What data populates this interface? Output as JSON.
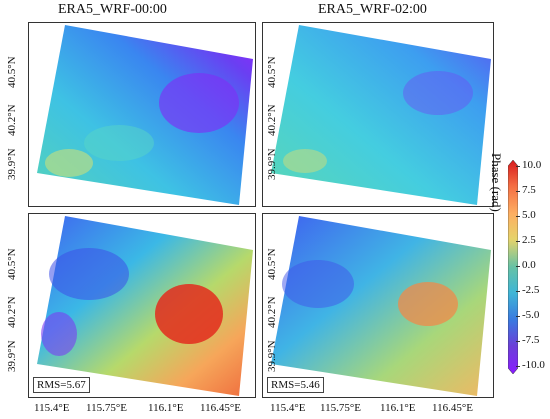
{
  "titles": {
    "left": "ERA5_WRF-00:00",
    "right": "ERA5_WRF-02:00"
  },
  "y_ticks": [
    "40.5°N",
    "40.2°N",
    "39.9°N"
  ],
  "x_ticks": [
    "115.4°E",
    "115.75°E",
    "116.1°E",
    "116.45°E"
  ],
  "rms": {
    "bottom_left": "RMS=5.67",
    "bottom_right": "RMS=5.46"
  },
  "colorbar": {
    "title": "Phase (rad)",
    "ticks": [
      "10.0",
      "7.5",
      "5.0",
      "2.5",
      "0.0",
      "-2.5",
      "-5.0",
      "-7.5",
      "-10.0"
    ],
    "colors": [
      "#d7191c",
      "#f46d43",
      "#fdae61",
      "#e6d36a",
      "#66c2a5",
      "#3fb6d6",
      "#3a78e0",
      "#6b3fd8",
      "#8a1cff"
    ]
  }
}
